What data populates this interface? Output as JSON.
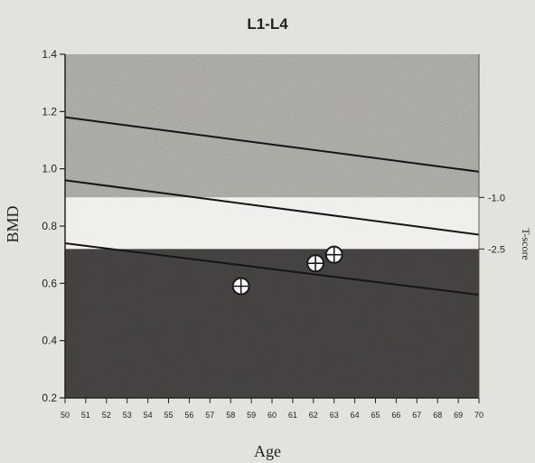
{
  "chart_data": {
    "type": "scatter",
    "title": "L1-L4",
    "xlabel": "Age",
    "ylabel": "BMD",
    "y2label": "T-score",
    "xlim": [
      50,
      70
    ],
    "ylim": [
      0.2,
      1.4
    ],
    "x_ticks": [
      "50",
      "51",
      "52",
      "53",
      "54",
      "55",
      "56",
      "57",
      "58",
      "59",
      "60",
      "61",
      "62",
      "63",
      "64",
      "65",
      "66",
      "67",
      "68",
      "69",
      "70"
    ],
    "y_ticks": [
      "0.2",
      "0.4",
      "0.6",
      "0.8",
      "1.0",
      "1.2",
      "1.4"
    ],
    "t_score_ticks": [
      {
        "label": "-1.0",
        "bmd": 0.9
      },
      {
        "label": "-2.5",
        "bmd": 0.72
      }
    ],
    "bands": [
      {
        "name": "upper",
        "from_bmd": 0.9,
        "to_bmd": 1.4,
        "color": "#b8b6b0"
      },
      {
        "name": "middle",
        "from_bmd": 0.72,
        "to_bmd": 0.9,
        "color": "#f0efeb"
      },
      {
        "name": "lower",
        "from_bmd": 0.2,
        "to_bmd": 0.72,
        "color": "#4a4846"
      }
    ],
    "reference_lines": [
      {
        "name": "upper",
        "x": [
          50,
          70
        ],
        "y": [
          1.18,
          0.99
        ]
      },
      {
        "name": "middle",
        "x": [
          50,
          70
        ],
        "y": [
          0.96,
          0.77
        ]
      },
      {
        "name": "lower",
        "x": [
          50,
          70
        ],
        "y": [
          0.74,
          0.56
        ]
      }
    ],
    "points": [
      {
        "x": 58.5,
        "y": 0.59
      },
      {
        "x": 62.1,
        "y": 0.67
      },
      {
        "x": 63.0,
        "y": 0.7
      }
    ],
    "grid": false
  }
}
